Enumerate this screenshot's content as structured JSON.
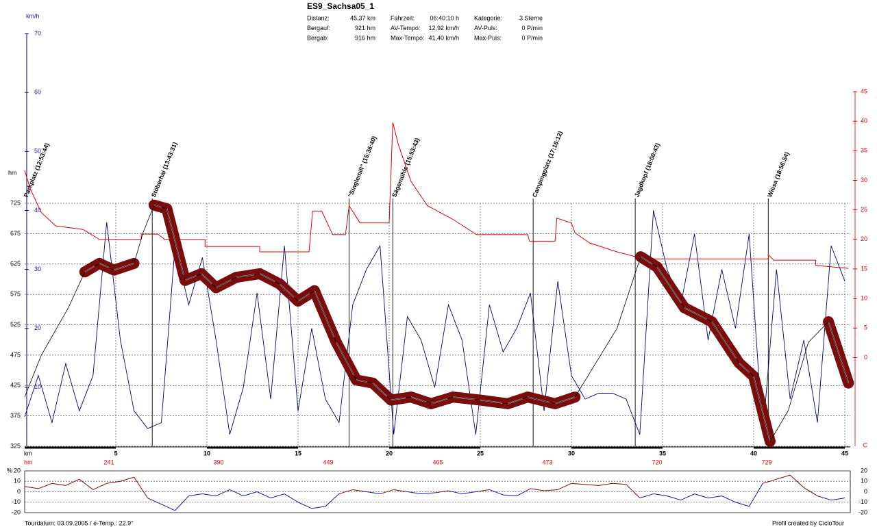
{
  "stats": [
    [
      "Distanz:",
      "45,37 km"
    ],
    [
      "Bergauf:",
      "921 hm"
    ],
    [
      "Bergab:",
      "916 hm"
    ],
    [
      "Fahrzeit:",
      "06:40:10 h"
    ],
    [
      "AV-Tempo:",
      "12,92 km/h"
    ],
    [
      "Max-Tempo:",
      "41,40 km/h"
    ],
    [
      "Kategorie:",
      "3 Sterne"
    ],
    [
      "AV-Puls:",
      "0 P/min"
    ],
    [
      "Max-Puls:",
      "0 P/min"
    ]
  ],
  "footer": {
    "left": "Tourdatum: 03.09.2005  /  e-Temp.: 22.9°",
    "right": "Profil created by CicloTour"
  },
  "chart_data": [
    {
      "type": "line",
      "title": "ES9_Sachsa05_1",
      "x_label": "km",
      "y_label": "hm",
      "y2_label": "C",
      "y3_label": "km/h",
      "xlim": [
        0,
        45.3
      ],
      "xticks": [
        5,
        10,
        15,
        20,
        25,
        30,
        35,
        40,
        45
      ],
      "ylim": [
        325,
        725
      ],
      "yticks": [
        325,
        375,
        425,
        475,
        525,
        575,
        625,
        675,
        725
      ],
      "y2lim": [
        -15,
        45
      ],
      "y2ticks": [
        45,
        40,
        35,
        30,
        25,
        20,
        15,
        10,
        5,
        0
      ],
      "y3lim": [
        0,
        70
      ],
      "y3ticks": [
        70,
        60,
        50,
        40,
        30,
        20,
        10
      ],
      "grid": true,
      "band_color": "#7a0c0c",
      "series": [
        {
          "axis": "y",
          "color": "#000000",
          "x": [
            0,
            0.9,
            2.4,
            3.3,
            4.1,
            4.9,
            6.0,
            6.5,
            7.1,
            7.8,
            8.8,
            9.7,
            10.5,
            11.6,
            12.9,
            14.0,
            15.0,
            15.9,
            17.1,
            18.2,
            19.1,
            20.1,
            21.2,
            22.3,
            23.5,
            25.0,
            26.5,
            27.6,
            29.1,
            30.2,
            32.5,
            33.8,
            34.7,
            36.2,
            37.7,
            39.2,
            40.0,
            40.9,
            41.9,
            43.0,
            44.1,
            45.2
          ],
          "values": [
            406,
            474,
            553,
            612,
            626,
            615,
            626,
            677,
            722,
            716,
            598,
            609,
            586,
            603,
            609,
            592,
            564,
            581,
            496,
            434,
            429,
            401,
            406,
            395,
            406,
            401,
            395,
            406,
            395,
            406,
            519,
            637,
            620,
            553,
            530,
            462,
            440,
            333,
            384,
            496,
            530,
            429
          ]
        },
        {
          "axis": "y2",
          "color": "#e00000",
          "x": [
            0,
            0.3,
            0.9,
            1.7,
            3.2,
            4.1,
            6.4,
            6.4,
            7.3,
            7.7,
            9.9,
            9.9,
            12.9,
            12.9,
            15.6,
            15.8,
            16.3,
            16.9,
            17.6,
            17.8,
            18.4,
            20.0,
            20.2,
            20.5,
            21.2,
            22.1,
            23.5,
            24.8,
            27.6,
            27.7,
            29.1,
            29.2,
            30.0,
            30.2,
            31.0,
            32.5,
            34.0,
            40.8,
            40.8,
            41.1,
            43.4,
            43.4,
            45.2
          ],
          "values": [
            31.7,
            28.6,
            24.6,
            22.3,
            21.7,
            20,
            20,
            20.9,
            20.9,
            20,
            20,
            18.8,
            18.8,
            17.9,
            17.9,
            24.8,
            24.8,
            20.8,
            20.8,
            25.7,
            22.8,
            22.8,
            39.8,
            36.1,
            29.8,
            25.7,
            23.4,
            20.8,
            20.8,
            19.7,
            19.7,
            23.6,
            22.8,
            21.1,
            19.4,
            17.9,
            16.7,
            16.7,
            17.4,
            16.5,
            16.5,
            15.6,
            15.1
          ]
        },
        {
          "axis": "y3",
          "color": "#00007f",
          "x": [
            0,
            0.75,
            1.5,
            2.25,
            3,
            3.75,
            4.5,
            5.25,
            6,
            6.75,
            7.5,
            8.25,
            9,
            9.75,
            10.5,
            11.25,
            12,
            12.75,
            13.5,
            14.25,
            15,
            15.75,
            16.5,
            17.25,
            18,
            18.75,
            19.5,
            20.25,
            21,
            21.75,
            22.5,
            23.25,
            24,
            24.75,
            25.5,
            26.25,
            27,
            27.75,
            28.5,
            29.25,
            30,
            30.75,
            31.5,
            32.25,
            33,
            33.75,
            34.5,
            35.25,
            36,
            36.75,
            37.5,
            38.25,
            39,
            39.75,
            40.5,
            41.25,
            42,
            42.75,
            43.5,
            44.25,
            45
          ],
          "values": [
            5,
            12,
            4,
            14,
            6,
            12,
            38,
            18,
            6,
            3,
            4,
            34,
            24,
            32,
            18,
            2,
            10,
            26,
            8,
            34,
            6,
            20,
            8,
            4,
            24,
            30,
            34,
            2,
            22,
            18,
            10,
            24,
            18,
            2,
            24,
            16,
            20,
            26,
            6,
            28,
            12,
            8,
            9,
            9,
            8,
            2,
            40,
            30,
            24,
            36,
            18,
            30,
            20,
            36,
            2,
            30,
            8,
            18,
            4,
            34,
            28
          ]
        }
      ],
      "annotations": [
        {
          "text": "Parkplatz (12:53:44)",
          "x": 0.0
        },
        {
          "text": "Stöberhai (13:43:31)",
          "x": 7.0
        },
        {
          "text": "\"Singlemill\" (15:36:40)",
          "x": 17.8
        },
        {
          "text": "Sägemühle (15:53:43)",
          "x": 20.2
        },
        {
          "text": "Campingplatz (17:16:12)",
          "x": 27.9
        },
        {
          "text": "Jagdkopf (18:00:43)",
          "x": 33.5
        },
        {
          "text": "Wiesa (18:56:54)",
          "x": 40.8
        }
      ],
      "hm_row": {
        "label": "hm",
        "values": [
          241,
          390,
          449,
          465,
          473,
          720,
          729
        ]
      }
    },
    {
      "type": "line",
      "y_label": "%",
      "xlim": [
        0,
        45.3
      ],
      "ylim": [
        -20,
        20
      ],
      "yticks": [
        20,
        10,
        0,
        -10,
        -20
      ],
      "grid": true,
      "positive_color": "#8b0000",
      "negative_color": "#1010c0",
      "x": [
        0,
        0.75,
        1.5,
        2.25,
        3,
        3.75,
        4.5,
        5.25,
        6,
        6.75,
        7.5,
        8.25,
        9,
        9.75,
        10.5,
        11.25,
        12,
        12.75,
        13.5,
        14.25,
        15,
        15.75,
        16.5,
        17.25,
        18,
        18.75,
        19.5,
        20.25,
        21,
        21.75,
        22.5,
        23.25,
        24,
        24.75,
        25.5,
        26.25,
        27,
        27.75,
        28.5,
        29.25,
        30,
        30.75,
        31.5,
        32.25,
        33,
        33.75,
        34.5,
        35.25,
        36,
        36.75,
        37.5,
        38.25,
        39,
        39.75,
        40.5,
        41.25,
        42,
        42.75,
        43.5,
        44.25,
        45
      ],
      "values": [
        5,
        3,
        8,
        6,
        12,
        2,
        8,
        10,
        14,
        -6,
        -12,
        -18,
        -4,
        -2,
        -4,
        2,
        -4,
        0,
        -6,
        -2,
        -10,
        -16,
        -14,
        -2,
        2,
        0,
        -2,
        2,
        0,
        -2,
        -1,
        1,
        -2,
        0,
        2,
        -3,
        -4,
        3,
        1,
        2,
        8,
        7,
        6,
        8,
        7,
        -6,
        -2,
        -4,
        -8,
        -2,
        -6,
        -4,
        -10,
        -14,
        8,
        12,
        16,
        4,
        -4,
        -8,
        -6
      ]
    }
  ]
}
